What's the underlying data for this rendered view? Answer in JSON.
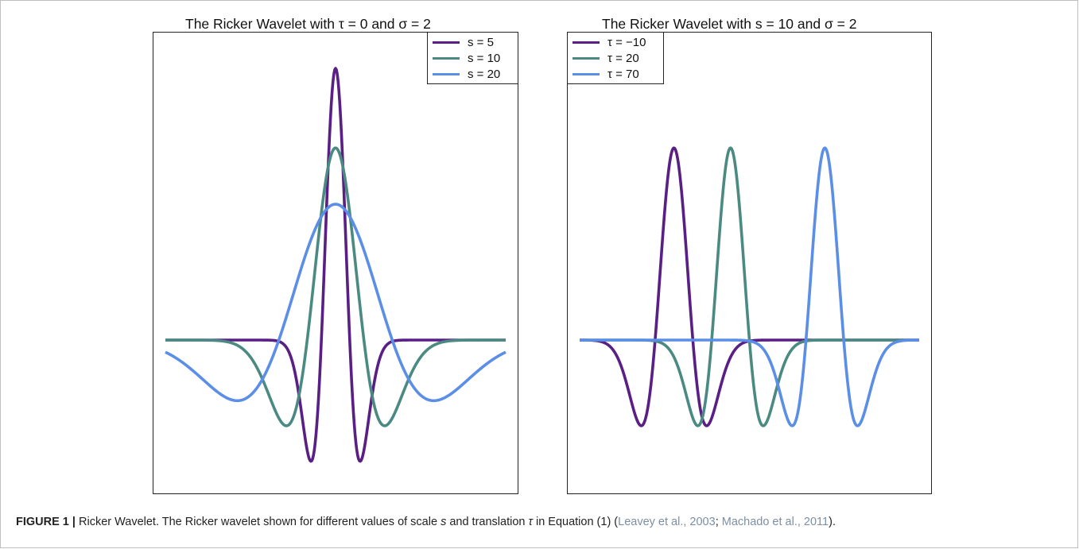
{
  "figure": {
    "caption_label": "FIGURE 1 |",
    "caption_text_before": " Ricker Wavelet. The Ricker wavelet shown for different values of scale ",
    "caption_s": "s",
    "caption_text_mid": " and translation ",
    "caption_tau": "τ",
    "caption_text_after": " in Equation (1) (",
    "caption_cite_1": "Leavey et al., 2003",
    "caption_sep": "; ",
    "caption_cite_2": "Machado et al., 2011",
    "caption_end": ")."
  },
  "colors": {
    "purple": "#5a1f85",
    "teal": "#4b8a82",
    "blue": "#5b8ee6"
  },
  "chart_data": [
    {
      "type": "line",
      "title": "The Ricker Wavelet with  τ = 0 and  σ = 2",
      "xlabel": "",
      "ylabel": "",
      "xlim": [
        -60,
        60
      ],
      "ylim": [
        -1.0,
        2.1
      ],
      "grid": false,
      "legend_position": "top-right",
      "series": [
        {
          "name": "s = 5",
          "color": "#5a1f85",
          "scale": 5,
          "translation": 0
        },
        {
          "name": "s = 10",
          "color": "#4b8a82",
          "scale": 10,
          "translation": 0
        },
        {
          "name": "s = 20",
          "color": "#5b8ee6",
          "scale": 20,
          "translation": 0
        }
      ]
    },
    {
      "type": "line",
      "title": "The Ricker Wavelet with  s = 10 and  σ = 2",
      "xlabel": "",
      "ylabel": "",
      "xlim": [
        -60,
        120
      ],
      "ylim": [
        -1.0,
        2.1
      ],
      "grid": false,
      "legend_position": "top-left",
      "series": [
        {
          "name": "τ = −10",
          "color": "#5a1f85",
          "scale": 10,
          "translation": -10
        },
        {
          "name": "τ = 20",
          "color": "#4b8a82",
          "scale": 10,
          "translation": 20
        },
        {
          "name": "τ = 70",
          "color": "#5b8ee6",
          "scale": 10,
          "translation": 70
        }
      ]
    }
  ]
}
